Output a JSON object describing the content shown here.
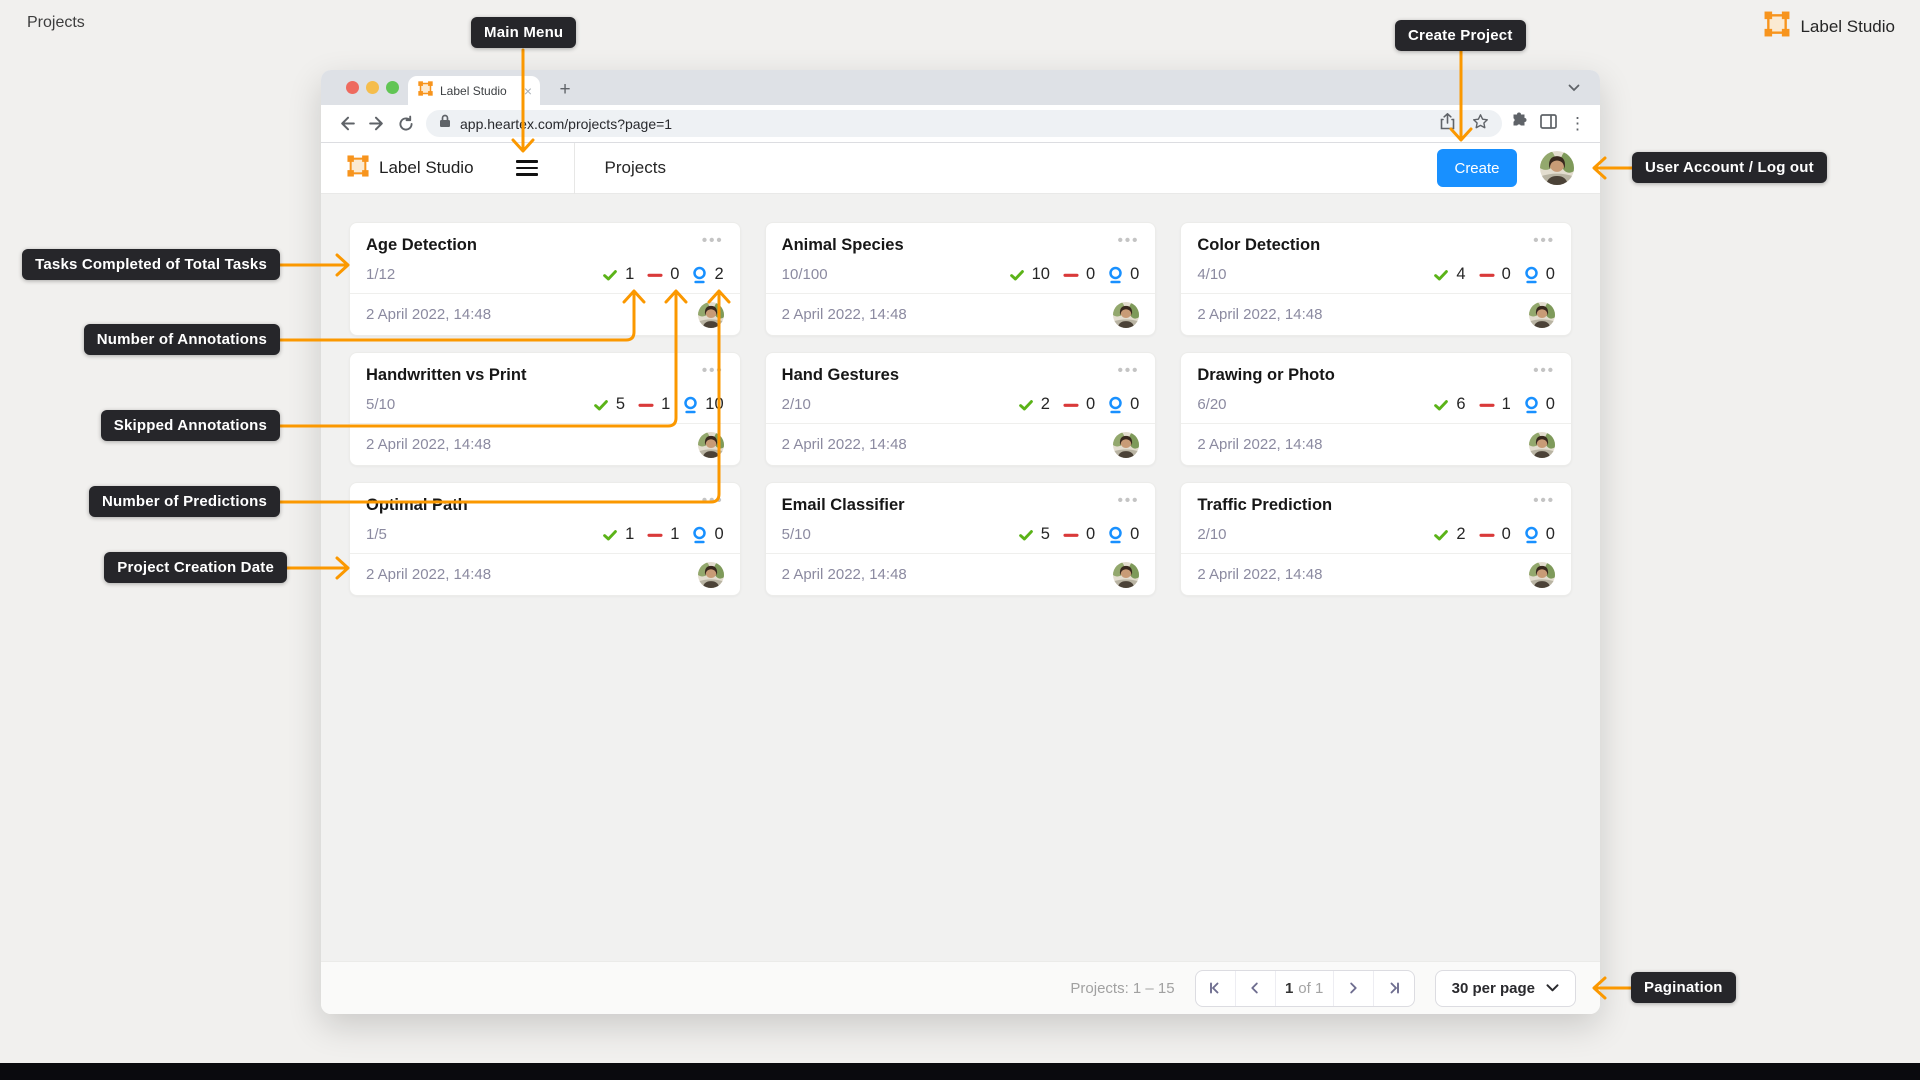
{
  "page": {
    "title": "Projects",
    "brand": "Label Studio"
  },
  "callouts": {
    "main_menu": "Main Menu",
    "create_project": "Create Project",
    "user_account": "User Account / Log out",
    "tasks_completed": "Tasks Completed of Total Tasks",
    "annotations": "Number of Annotations",
    "skipped": "Skipped Annotations",
    "predictions": "Number of Predictions",
    "creation_date": "Project Creation Date",
    "pagination": "Pagination"
  },
  "browser": {
    "tab_title": "Label Studio",
    "url": "app.heartex.com/projects?page=1"
  },
  "app": {
    "brand": "Label Studio",
    "page_title": "Projects",
    "create_button": "Create"
  },
  "projects": [
    {
      "name": "Age Detection",
      "progress": "1/12",
      "annotations": 1,
      "skipped": 0,
      "predictions": 2,
      "created": "2 April 2022, 14:48"
    },
    {
      "name": "Animal Species",
      "progress": "10/100",
      "annotations": 10,
      "skipped": 0,
      "predictions": 0,
      "created": "2 April 2022, 14:48"
    },
    {
      "name": "Color Detection",
      "progress": "4/10",
      "annotations": 4,
      "skipped": 0,
      "predictions": 0,
      "created": "2 April 2022, 14:48"
    },
    {
      "name": "Handwritten vs Print",
      "progress": "5/10",
      "annotations": 5,
      "skipped": 1,
      "predictions": 10,
      "created": "2 April 2022, 14:48"
    },
    {
      "name": "Hand Gestures",
      "progress": "2/10",
      "annotations": 2,
      "skipped": 0,
      "predictions": 0,
      "created": "2 April 2022, 14:48"
    },
    {
      "name": "Drawing or Photo",
      "progress": "6/20",
      "annotations": 6,
      "skipped": 1,
      "predictions": 0,
      "created": "2 April 2022, 14:48"
    },
    {
      "name": "Optimal Path",
      "progress": "1/5",
      "annotations": 1,
      "skipped": 1,
      "predictions": 0,
      "created": "2 April 2022, 14:48"
    },
    {
      "name": "Email Classifier",
      "progress": "5/10",
      "annotations": 5,
      "skipped": 0,
      "predictions": 0,
      "created": "2 April 2022, 14:48"
    },
    {
      "name": "Traffic Prediction",
      "progress": "2/10",
      "annotations": 2,
      "skipped": 0,
      "predictions": 0,
      "created": "2 April 2022, 14:48"
    }
  ],
  "footer": {
    "range_label": "Projects: 1 – 15",
    "page_current": "1",
    "page_of": "of 1",
    "per_page": "30 per page"
  },
  "icons": {
    "tab_close": "×",
    "new_tab": "+",
    "menu_vertical_dots": "⋮",
    "card_menu_dots": "•••"
  },
  "colors": {
    "accent_orange": "#FB9800",
    "create_blue": "#1890FF",
    "check_green": "#5BB318",
    "minus_red": "#D93A3A",
    "prediction_blue": "#1890FF",
    "callout_bg": "#26262A"
  }
}
